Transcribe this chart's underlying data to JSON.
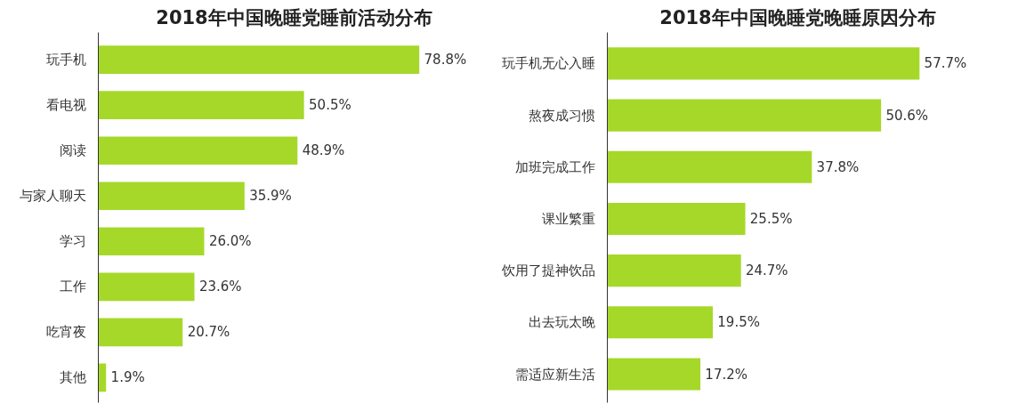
{
  "chart_data": [
    {
      "type": "bar",
      "orientation": "horizontal",
      "title": "2018年中国晚睡党睡前活动分布",
      "categories": [
        "玩手机",
        "看电视",
        "阅读",
        "与家人聊天",
        "学习",
        "工作",
        "吃宵夜",
        "其他"
      ],
      "values": [
        78.8,
        50.5,
        48.9,
        35.9,
        26.0,
        23.6,
        20.7,
        1.9
      ],
      "value_labels": [
        "78.8%",
        "50.5%",
        "48.9%",
        "35.9%",
        "26.0%",
        "23.6%",
        "20.7%",
        "1.9%"
      ],
      "color": "#a6d82a",
      "grid": false,
      "tick_labels": "y"
    },
    {
      "type": "bar",
      "orientation": "horizontal",
      "title": "2018年中国晚睡党晚睡原因分布",
      "categories": [
        "玩手机无心入睡",
        "熬夜成习惯",
        "加班完成工作",
        "课业繁重",
        "饮用了提神饮品",
        "出去玩太晚",
        "需适应新生活"
      ],
      "values": [
        57.7,
        50.6,
        37.8,
        25.5,
        24.7,
        19.5,
        17.2
      ],
      "value_labels": [
        "57.7%",
        "50.6%",
        "37.8%",
        "25.5%",
        "24.7%",
        "19.5%",
        "17.2%"
      ],
      "color": "#a6d82a",
      "grid": false,
      "tick_labels": "y"
    }
  ]
}
